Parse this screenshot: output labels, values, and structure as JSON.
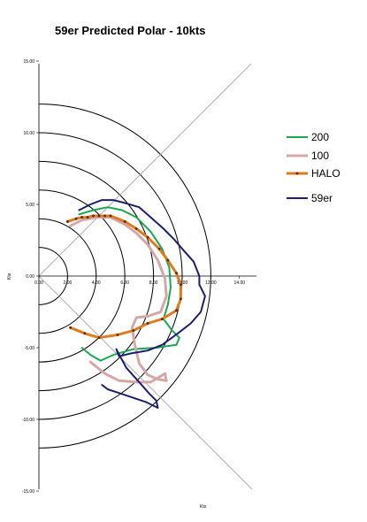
{
  "chart_data": {
    "type": "line",
    "title": "59er Predicted Polar - 10kts",
    "xlabel": "Kts",
    "ylabel": "Kts",
    "xlim": [
      0,
      15
    ],
    "ylim": [
      -15,
      15
    ],
    "x_ticks": [
      "0.00",
      "2.00",
      "4.00",
      "6.00",
      "8.00",
      "10.00",
      "12.00",
      "14.00"
    ],
    "y_ticks": [
      "15.00",
      "10.00",
      "5.00",
      "0.00",
      "-5.00",
      "-10.00",
      "-15.00"
    ],
    "rings": [
      2,
      4,
      6,
      8,
      10,
      12
    ],
    "diagonals": true,
    "grid": false,
    "legend_position": "right",
    "series": [
      {
        "name": "200",
        "color": "#1aa84e",
        "marker": false,
        "points": [
          [
            2.8,
            4.3
          ],
          [
            3.8,
            4.6
          ],
          [
            4.8,
            4.8
          ],
          [
            5.8,
            4.6
          ],
          [
            6.8,
            4.1
          ],
          [
            7.8,
            3.1
          ],
          [
            8.6,
            1.9
          ],
          [
            9.1,
            0.6
          ],
          [
            9.2,
            -0.8
          ],
          [
            9.0,
            -2.0
          ],
          [
            8.7,
            -3.0
          ],
          [
            9.3,
            -3.8
          ],
          [
            9.8,
            -4.3
          ],
          [
            9.6,
            -4.8
          ],
          [
            8.2,
            -5.0
          ],
          [
            6.6,
            -5.1
          ],
          [
            5.2,
            -5.5
          ],
          [
            4.3,
            -5.9
          ],
          [
            3.6,
            -5.5
          ],
          [
            3.0,
            -5.0
          ]
        ]
      },
      {
        "name": "100",
        "color": "#d4a8a8",
        "marker": false,
        "points": [
          [
            2.2,
            3.5
          ],
          [
            3.0,
            3.9
          ],
          [
            4.0,
            4.1
          ],
          [
            5.0,
            4.1
          ],
          [
            6.0,
            3.6
          ],
          [
            6.8,
            3.0
          ],
          [
            7.6,
            2.2
          ],
          [
            8.3,
            1.1
          ],
          [
            8.8,
            -0.2
          ],
          [
            8.9,
            -1.4
          ],
          [
            8.5,
            -2.5
          ],
          [
            7.6,
            -2.8
          ],
          [
            6.8,
            -2.9
          ],
          [
            6.5,
            -3.6
          ],
          [
            6.7,
            -4.8
          ],
          [
            7.0,
            -6.1
          ],
          [
            7.6,
            -6.9
          ],
          [
            8.3,
            -7.2
          ],
          [
            8.9,
            -7.3
          ],
          [
            8.8,
            -6.8
          ],
          [
            7.8,
            -7.4
          ],
          [
            6.8,
            -7.4
          ],
          [
            5.6,
            -7.3
          ],
          [
            4.6,
            -6.8
          ],
          [
            3.6,
            -6.0
          ]
        ]
      },
      {
        "name": "HALO",
        "color": "#e07a1e",
        "marker": true,
        "marker_color": "#5a2a00",
        "points": [
          [
            2.0,
            3.8
          ],
          [
            2.6,
            4.0
          ],
          [
            3.0,
            4.1
          ],
          [
            3.4,
            4.1
          ],
          [
            3.8,
            4.2
          ],
          [
            4.2,
            4.2
          ],
          [
            4.6,
            4.2
          ],
          [
            5.0,
            4.2
          ],
          [
            6.0,
            3.8
          ],
          [
            6.8,
            3.3
          ],
          [
            7.6,
            2.7
          ],
          [
            8.4,
            1.9
          ],
          [
            9.0,
            1.1
          ],
          [
            9.6,
            0.2
          ],
          [
            9.9,
            -0.6
          ],
          [
            9.9,
            -1.6
          ],
          [
            9.6,
            -2.4
          ],
          [
            8.6,
            -3.0
          ],
          [
            7.6,
            -3.3
          ],
          [
            6.6,
            -3.8
          ],
          [
            5.5,
            -4.1
          ],
          [
            4.2,
            -4.3
          ],
          [
            3.2,
            -4.0
          ],
          [
            2.2,
            -3.6
          ]
        ]
      },
      {
        "name": "59er",
        "color": "#1a1f6e",
        "marker": false,
        "points": [
          [
            2.8,
            4.6
          ],
          [
            3.6,
            5.0
          ],
          [
            4.4,
            5.3
          ],
          [
            5.2,
            5.3
          ],
          [
            6.0,
            5.1
          ],
          [
            7.0,
            4.8
          ],
          [
            7.8,
            4.1
          ],
          [
            8.7,
            3.3
          ],
          [
            9.4,
            2.6
          ],
          [
            10.0,
            1.9
          ],
          [
            10.8,
            1.0
          ],
          [
            11.2,
            0.0
          ],
          [
            11.2,
            -0.6
          ],
          [
            11.6,
            -1.4
          ],
          [
            11.3,
            -2.5
          ],
          [
            10.6,
            -3.3
          ],
          [
            9.7,
            -4.0
          ],
          [
            8.6,
            -4.8
          ],
          [
            7.6,
            -5.2
          ],
          [
            6.4,
            -5.4
          ],
          [
            5.6,
            -5.6
          ],
          [
            5.4,
            -5.1
          ],
          [
            6.1,
            -6.4
          ],
          [
            7.0,
            -7.4
          ],
          [
            7.7,
            -8.2
          ],
          [
            8.2,
            -8.7
          ],
          [
            8.3,
            -9.2
          ],
          [
            7.5,
            -8.8
          ],
          [
            6.3,
            -8.4
          ],
          [
            4.8,
            -7.9
          ],
          [
            4.4,
            -7.6
          ]
        ]
      }
    ]
  }
}
